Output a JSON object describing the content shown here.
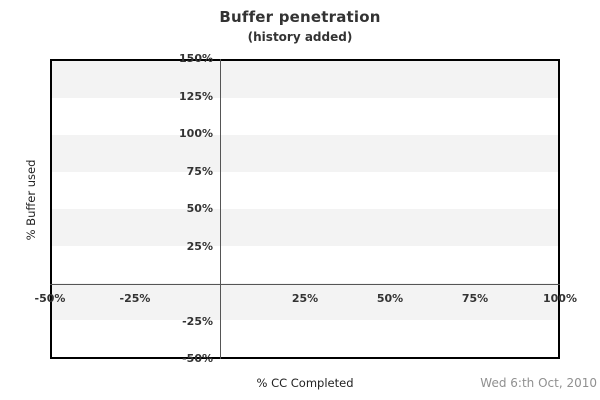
{
  "header": {
    "title": "Buffer penetration",
    "subtitle": "(history added)"
  },
  "footer": {
    "date_label": "Wed 6:th Oct, 2010"
  },
  "chart_data": {
    "type": "scatter",
    "title": "Buffer penetration",
    "subtitle": "(history added)",
    "xlabel": "% CC Completed",
    "ylabel": "% Buffer used",
    "xlim": [
      -50,
      100
    ],
    "ylim": [
      -50,
      150
    ],
    "x_ticks": [
      {
        "value": -50,
        "label": "-50%"
      },
      {
        "value": -25,
        "label": "-25%"
      },
      {
        "value": 25,
        "label": "25%"
      },
      {
        "value": 50,
        "label": "50%"
      },
      {
        "value": 75,
        "label": "75%"
      },
      {
        "value": 100,
        "label": "100%"
      }
    ],
    "y_ticks": [
      {
        "value": 150,
        "label": "150%"
      },
      {
        "value": 125,
        "label": "125%"
      },
      {
        "value": 100,
        "label": "100%"
      },
      {
        "value": 75,
        "label": "75%"
      },
      {
        "value": 50,
        "label": "50%"
      },
      {
        "value": 25,
        "label": "25%"
      },
      {
        "value": -25,
        "label": "-25%"
      },
      {
        "value": -50,
        "label": "-50%"
      }
    ],
    "series": [],
    "grid_bands": {
      "interval": 25,
      "colors": [
        "#f3f3f3",
        "#ffffff"
      ]
    },
    "zero_lines": {
      "x": 0,
      "y": 0
    },
    "legend": "none",
    "colors": {
      "plot_border": "#000000",
      "zero_line": "#555555",
      "band": "#f3f3f3",
      "text": "#333333",
      "axis_title_text": "#222222",
      "footer_text": "#909090"
    }
  }
}
